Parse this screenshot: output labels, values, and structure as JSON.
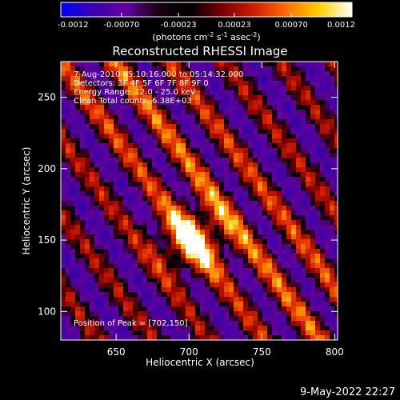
{
  "colorbar": {
    "tick_labels": [
      "-0.0012",
      "-0.00070",
      "-0.00023",
      "0.00023",
      "0.00070",
      "0.0012"
    ],
    "min": -0.0012,
    "max": 0.0012,
    "unit_parts": [
      "(photons cm",
      "-2",
      " s",
      "-1",
      " asec",
      "-2",
      ")"
    ],
    "colors": [
      "#0000ff",
      "#3b00ad",
      "#6400a0",
      "#1a0010",
      "#000000",
      "#7a0000",
      "#d21e00",
      "#ff7000",
      "#ffd200",
      "#ffffff"
    ]
  },
  "chart_data": {
    "type": "heatmap",
    "title": "Reconstructed RHESSI Image",
    "xlabel": "Heliocentric X (arcsec)",
    "ylabel": "Heliocentric Y (arcsec)",
    "xlim": [
      612,
      802
    ],
    "ylim": [
      80,
      275
    ],
    "xticks": [
      "650",
      "700",
      "750",
      "800"
    ],
    "yticks": [
      "100",
      "150",
      "200",
      "250"
    ],
    "annotations": [
      "7-Aug-2010 05:10:16.000 to 05:14:32.000",
      "Detectors: 3F 4F 5F 6F 7F 8F 9F 0",
      "Energy Range: 12.0 - 25.0 keV",
      "Clean     Total counts: 6.38E+03"
    ],
    "peak_label": "Position of Peak = [702,150]",
    "peak": [
      702,
      150
    ],
    "fringe_direction": "diagonal, upper-left to lower-right"
  },
  "footer": {
    "timestamp": "9-May-2022 22:27"
  }
}
